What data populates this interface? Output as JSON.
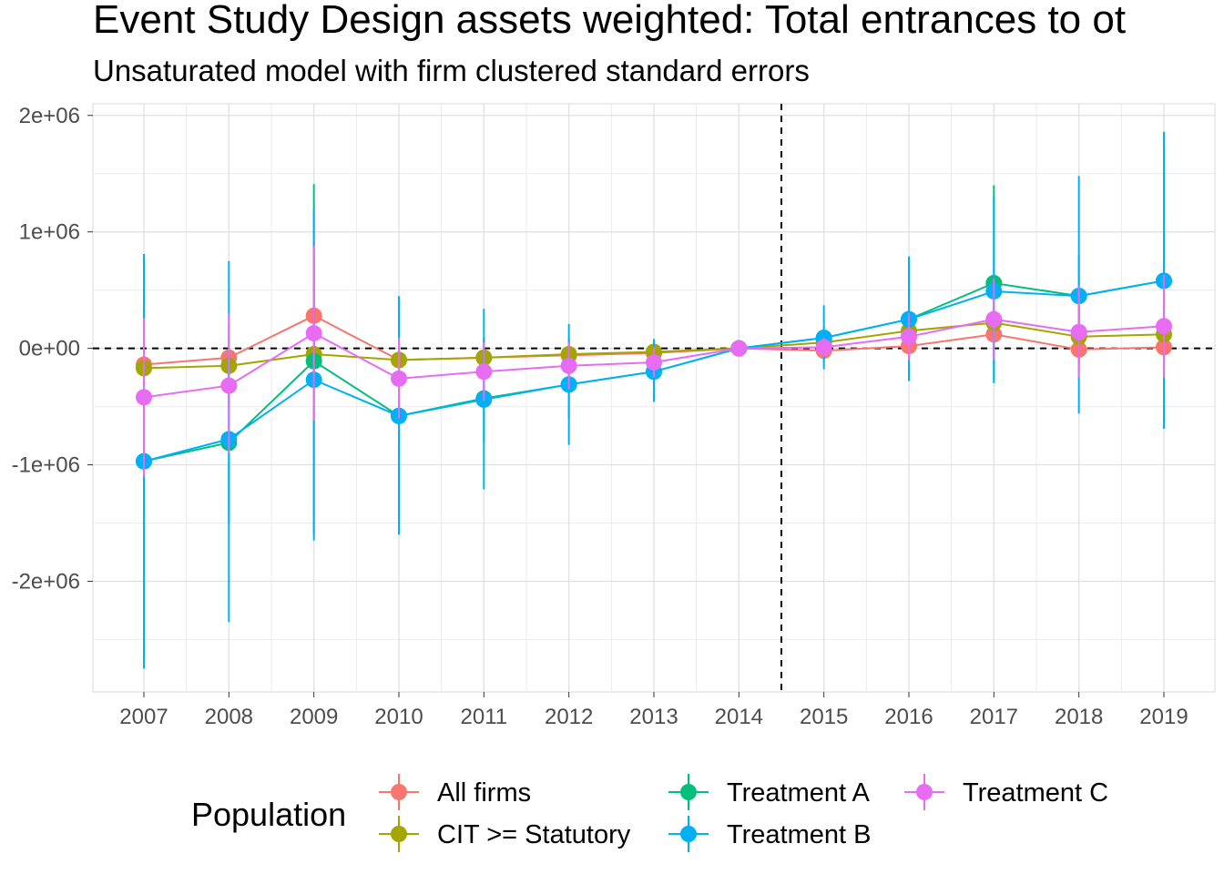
{
  "chart_data": {
    "type": "line",
    "title": "Event Study Design assets weighted: Total entrances to ot",
    "subtitle": "Unsaturated model with firm clustered standard errors",
    "xlabel": "",
    "ylabel": "",
    "x": [
      2007,
      2008,
      2009,
      2010,
      2011,
      2012,
      2013,
      2014,
      2015,
      2016,
      2017,
      2018,
      2019
    ],
    "x_tick_labels": [
      "2007",
      "2008",
      "2009",
      "2010",
      "2011",
      "2012",
      "2013",
      "2014",
      "2015",
      "2016",
      "2017",
      "2018",
      "2019"
    ],
    "ylim": [
      -2950000,
      2100000
    ],
    "y_ticks": [
      -2000000,
      -1000000,
      0,
      1000000,
      2000000
    ],
    "y_tick_labels": [
      "-2e+06",
      "-1e+06",
      "0e+00",
      "1e+06",
      "2e+06"
    ],
    "reference_lines": {
      "vertical_x": 2014.5,
      "horizontal_y": 0,
      "style": "dashed"
    },
    "grid": true,
    "legend": {
      "title": "Population",
      "position": "bottom"
    },
    "series": [
      {
        "name": "All firms",
        "color": "#F8766D",
        "values": [
          -140000,
          -80000,
          280000,
          -100000,
          -80000,
          -60000,
          -40000,
          0,
          -20000,
          20000,
          120000,
          -10000,
          10000
        ],
        "lower": [
          -400000,
          -300000,
          -200000,
          -250000,
          -250000,
          -200000,
          -150000,
          0,
          -120000,
          -100000,
          -80000,
          -150000,
          -150000
        ],
        "upper": [
          120000,
          140000,
          760000,
          50000,
          90000,
          80000,
          70000,
          0,
          80000,
          140000,
          320000,
          130000,
          170000
        ]
      },
      {
        "name": "CIT >= Statutory",
        "color": "#A3A500",
        "values": [
          -170000,
          -150000,
          -50000,
          -100000,
          -80000,
          -50000,
          -30000,
          0,
          50000,
          150000,
          220000,
          100000,
          120000
        ],
        "lower": [
          -600000,
          -500000,
          -350000,
          -300000,
          -250000,
          -180000,
          -120000,
          0,
          -50000,
          0,
          -130000,
          -150000,
          -170000
        ],
        "upper": [
          260000,
          200000,
          250000,
          150000,
          90000,
          80000,
          60000,
          0,
          150000,
          300000,
          570000,
          350000,
          410000
        ]
      },
      {
        "name": "Treatment A",
        "color": "#00BF7D",
        "values": [
          -970000,
          -810000,
          -110000,
          -580000,
          -430000,
          -310000,
          -200000,
          0,
          90000,
          250000,
          560000,
          450000,
          580000
        ],
        "lower": [
          -1400000,
          -1500000,
          -1600000,
          -1000000,
          -800000,
          -600000,
          -400000,
          0,
          -10000,
          50000,
          -280000,
          100000,
          200000
        ],
        "upper": [
          -540000,
          -120000,
          1410000,
          -160000,
          -60000,
          -20000,
          0,
          0,
          190000,
          450000,
          1400000,
          800000,
          960000
        ]
      },
      {
        "name": "Treatment B",
        "color": "#00B0F6",
        "values": [
          -970000,
          -780000,
          -270000,
          -580000,
          -440000,
          -310000,
          -200000,
          0,
          90000,
          250000,
          490000,
          450000,
          580000
        ],
        "lower": [
          -2750000,
          -2350000,
          -1650000,
          -1600000,
          -1210000,
          -830000,
          -460000,
          0,
          -180000,
          -280000,
          -300000,
          -560000,
          -690000
        ],
        "upper": [
          810000,
          750000,
          1200000,
          450000,
          340000,
          210000,
          80000,
          0,
          370000,
          790000,
          1300000,
          1480000,
          1860000
        ]
      },
      {
        "name": "Treatment C",
        "color": "#E76BF3",
        "values": [
          -420000,
          -320000,
          130000,
          -260000,
          -200000,
          -150000,
          -120000,
          0,
          10000,
          100000,
          250000,
          140000,
          190000
        ],
        "lower": [
          -1100000,
          -900000,
          -620000,
          -600000,
          -450000,
          -350000,
          -250000,
          0,
          -70000,
          -100000,
          -100000,
          -250000,
          -250000
        ],
        "upper": [
          260000,
          300000,
          880000,
          90000,
          50000,
          50000,
          10000,
          0,
          90000,
          300000,
          600000,
          530000,
          630000
        ]
      }
    ]
  }
}
